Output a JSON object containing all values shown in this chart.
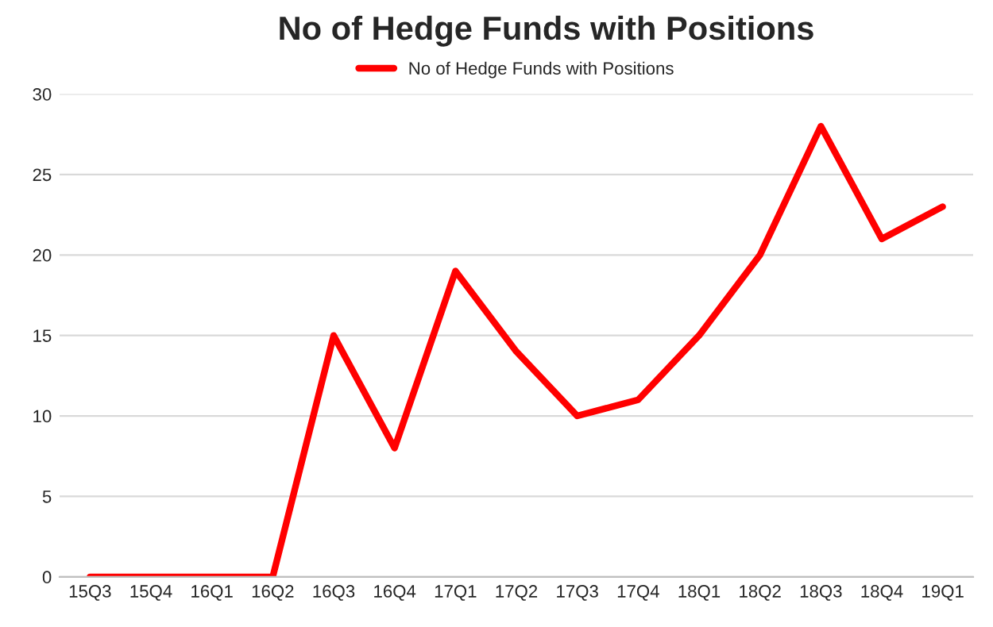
{
  "chart_data": {
    "type": "line",
    "title": "No of Hedge Funds with Positions",
    "categories": [
      "15Q3",
      "15Q4",
      "16Q1",
      "16Q2",
      "16Q3",
      "16Q4",
      "17Q1",
      "17Q2",
      "17Q3",
      "17Q4",
      "18Q1",
      "18Q2",
      "18Q3",
      "18Q4",
      "19Q1"
    ],
    "series": [
      {
        "name": "No of Hedge Funds with Positions",
        "color": "#ff0000",
        "values": [
          0,
          0,
          0,
          0,
          15,
          8,
          19,
          14,
          10,
          11,
          15,
          20,
          28,
          21,
          23
        ]
      }
    ],
    "ylim": [
      0,
      30
    ],
    "yticks": [
      0,
      5,
      10,
      15,
      20,
      25,
      30
    ],
    "grid": "y",
    "legend": "top",
    "marker": "none",
    "line_style": "solid"
  }
}
